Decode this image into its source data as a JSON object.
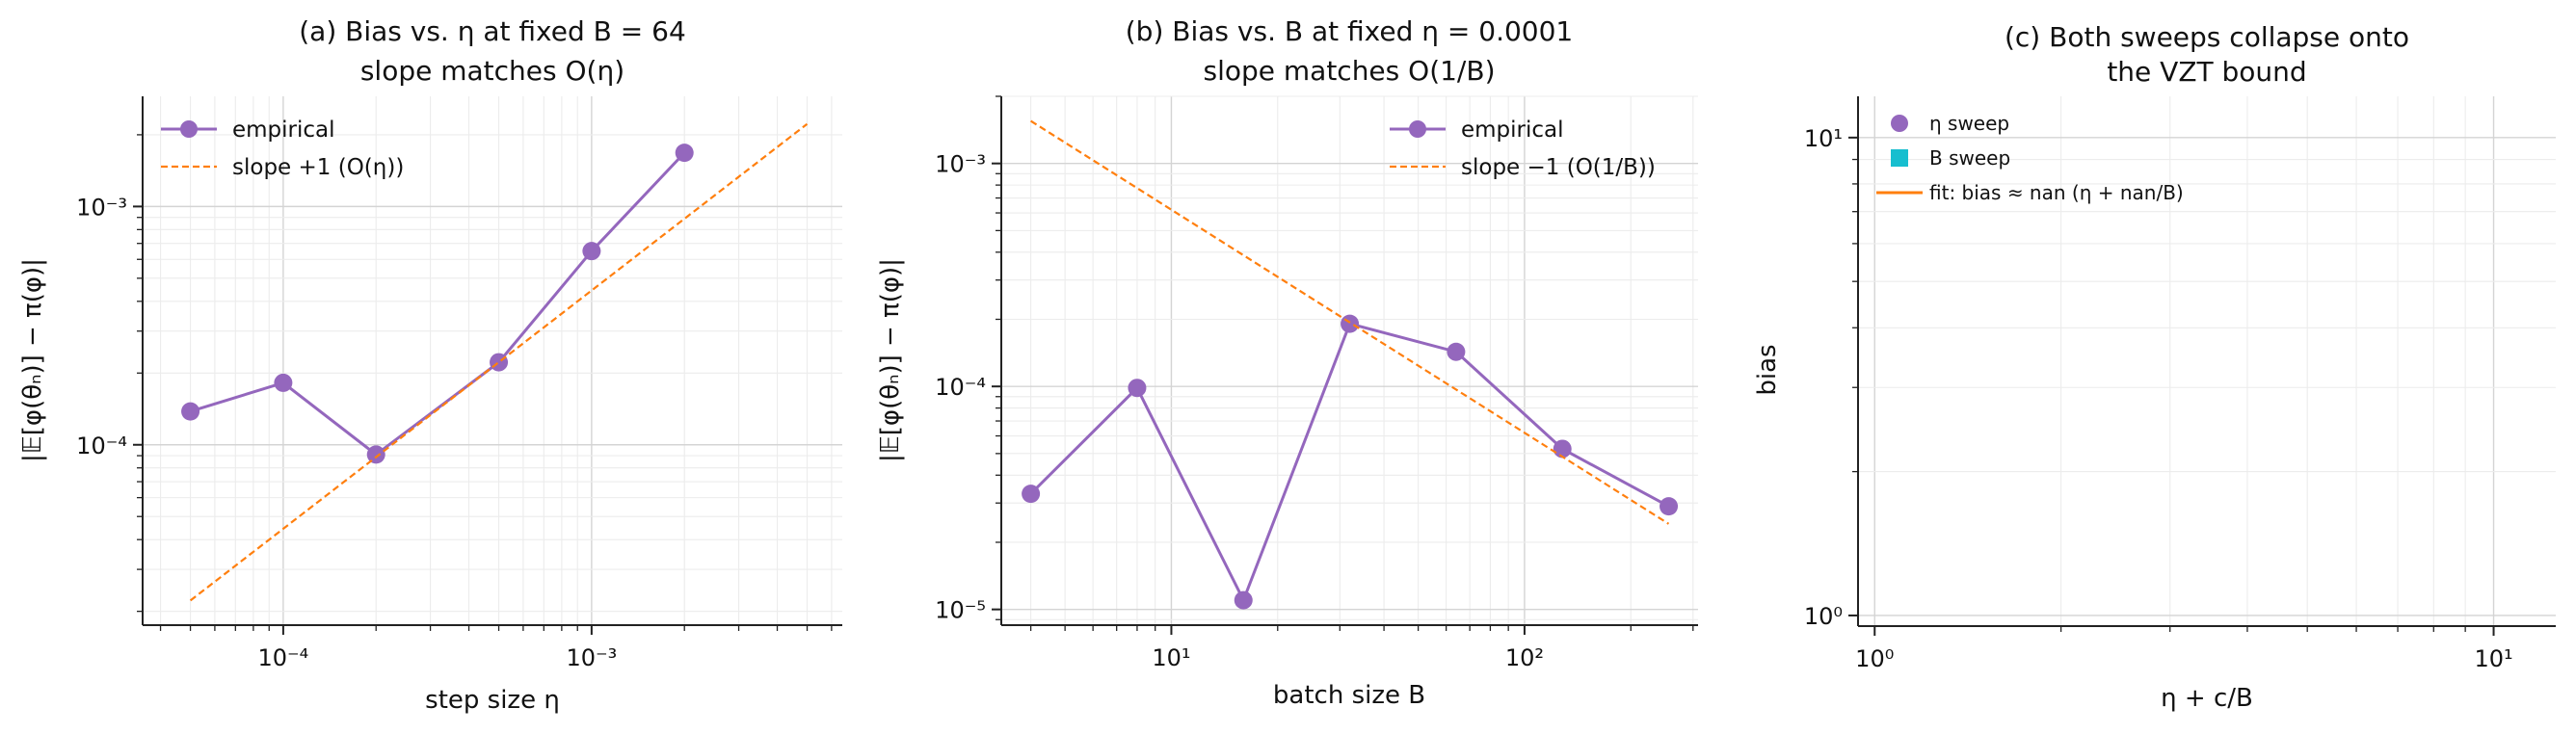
{
  "colors": {
    "empirical": "#9467bd",
    "slope": "#ff7f0e",
    "eta_sweep": "#9467bd",
    "B_sweep": "#17becf",
    "fit": "#ff7f0e"
  },
  "chart_data": [
    {
      "type": "line",
      "title": "(a) Bias vs. η at fixed B = 64",
      "subtitle": "slope matches O(η)",
      "xlabel": "step size η",
      "ylabel": "|𝔼[φ(θₙ)] − π(φ)|",
      "xscale": "log",
      "yscale": "log",
      "xlim": [
        3.5e-05,
        0.0065
      ],
      "ylim": [
        1.75e-05,
        0.0029
      ],
      "xticks": [
        {
          "value": 0.0001,
          "label": "10⁻⁴"
        },
        {
          "value": 0.001,
          "label": "10⁻³"
        }
      ],
      "yticks": [
        {
          "value": 0.0001,
          "label": "10⁻⁴"
        },
        {
          "value": 0.001,
          "label": "10⁻³"
        }
      ],
      "grid": true,
      "legend_position": "top-left",
      "series": [
        {
          "name": "empirical",
          "style": "line-marker",
          "color_key": "empirical",
          "x": [
            5e-05,
            0.0001,
            0.0002,
            0.0005,
            0.001,
            0.002
          ],
          "y": [
            0.000138,
            0.000182,
            9.1e-05,
            0.000222,
            0.00065,
            0.00168
          ]
        },
        {
          "name": "slope +1  (O(η))",
          "style": "dashed",
          "color_key": "slope",
          "x": [
            5e-05,
            0.005
          ],
          "y": [
            2.22e-05,
            0.00222
          ]
        }
      ]
    },
    {
      "type": "line",
      "title": "(b) Bias vs. B at fixed η = 0.0001",
      "subtitle": "slope matches O(1/B)",
      "xlabel": "batch size B",
      "ylabel": "|𝔼[φ(θₙ)] − π(φ)|",
      "xscale": "log",
      "yscale": "log",
      "xlim": [
        3.3,
        310
      ],
      "ylim": [
        8.5e-06,
        0.002
      ],
      "xticks": [
        {
          "value": 10,
          "label": "10¹"
        },
        {
          "value": 100,
          "label": "10²"
        }
      ],
      "yticks": [
        {
          "value": 1e-05,
          "label": "10⁻⁵"
        },
        {
          "value": 0.0001,
          "label": "10⁻⁴"
        },
        {
          "value": 0.001,
          "label": "10⁻³"
        }
      ],
      "grid": true,
      "legend_position": "top-right",
      "series": [
        {
          "name": "empirical",
          "style": "line-marker",
          "color_key": "empirical",
          "x": [
            4,
            8,
            16,
            32,
            64,
            128,
            256
          ],
          "y": [
            3.3e-05,
            9.85e-05,
            1.1e-05,
            0.000191,
            0.000143,
            5.25e-05,
            2.9e-05
          ]
        },
        {
          "name": "slope −1  (O(1/B))",
          "style": "dashed",
          "color_key": "slope",
          "x": [
            4,
            256
          ],
          "y": [
            0.00155,
            2.42e-05
          ]
        }
      ]
    },
    {
      "type": "scatter",
      "title": "(c) Both sweeps collapse onto",
      "subtitle": "the VZT bound",
      "xlabel": "η + c/B",
      "ylabel": "bias",
      "xscale": "log",
      "yscale": "log",
      "xlim": [
        0.94,
        12.6
      ],
      "ylim": [
        0.95,
        12.2
      ],
      "xticks": [
        {
          "value": 1,
          "label": "10⁰"
        },
        {
          "value": 10,
          "label": "10¹"
        }
      ],
      "yticks": [
        {
          "value": 1,
          "label": "10⁰"
        },
        {
          "value": 10,
          "label": "10¹"
        }
      ],
      "grid": true,
      "legend_position": "top-left",
      "series": [
        {
          "name": "η sweep",
          "style": "marker-circle",
          "color_key": "eta_sweep",
          "x": [],
          "y": []
        },
        {
          "name": "B sweep",
          "style": "marker-square",
          "color_key": "B_sweep",
          "x": [],
          "y": []
        },
        {
          "name": "fit: bias ≈ nan (η + nan/B)",
          "style": "line",
          "color_key": "fit",
          "x": [],
          "y": []
        }
      ]
    }
  ]
}
